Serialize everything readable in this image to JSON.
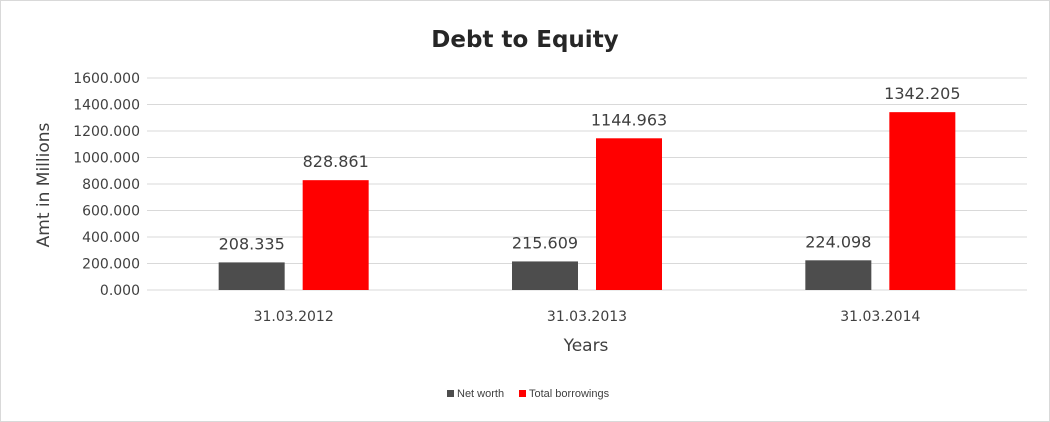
{
  "chart_data": {
    "type": "bar",
    "title": "Debt to Equity",
    "xlabel": "Years",
    "ylabel": "Amt in Millions",
    "categories": [
      "31.03.2012",
      "31.03.2013",
      "31.03.2014"
    ],
    "series": [
      {
        "name": "Net worth",
        "values": [
          208.335,
          215.609,
          224.098
        ],
        "color": "#4d4d4d"
      },
      {
        "name": "Total borrowings",
        "values": [
          828.861,
          1144.963,
          1342.205
        ],
        "color": "#ff0000"
      }
    ],
    "ylim": [
      0,
      1600
    ],
    "yticks": [
      "0.000",
      "200.000",
      "400.000",
      "600.000",
      "800.000",
      "1000.000",
      "1200.000",
      "1400.000",
      "1600.000"
    ],
    "data_labels": [
      [
        "208.335",
        "215.609",
        "224.098"
      ],
      [
        "828.861",
        "1144.963",
        "1342.205"
      ]
    ],
    "grid": true,
    "legend_position": "bottom"
  }
}
